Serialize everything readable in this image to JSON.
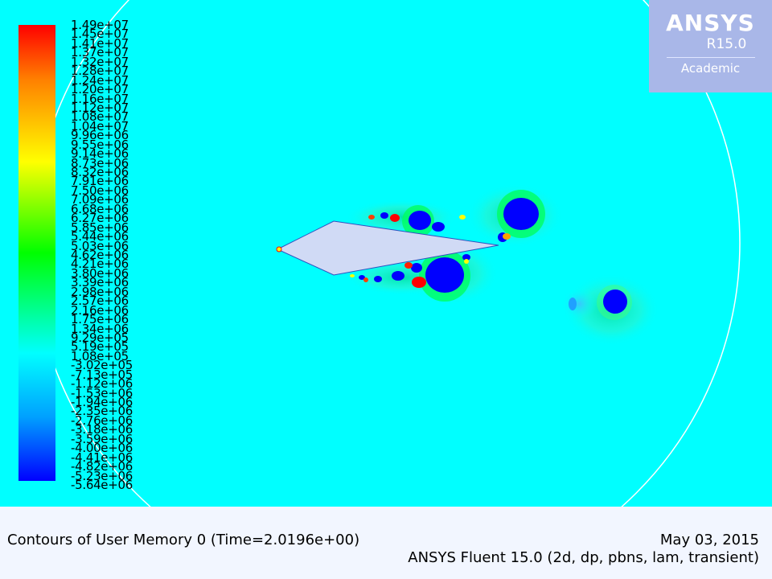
{
  "logo": {
    "brand": "ANSYS",
    "version": "R15.0",
    "edition": "Academic"
  },
  "colorbar": {
    "labels": [
      "1.49e+07",
      "1.45e+07",
      "1.41e+07",
      "1.37e+07",
      "1.32e+07",
      "1.28e+07",
      "1.24e+07",
      "1.20e+07",
      "1.16e+07",
      "1.12e+07",
      "1.08e+07",
      "1.04e+07",
      "9.96e+06",
      "9.55e+06",
      "9.14e+06",
      "8.73e+06",
      "8.32e+06",
      "7.91e+06",
      "7.50e+06",
      "7.09e+06",
      "6.68e+06",
      "6.27e+06",
      "5.85e+06",
      "5.44e+06",
      "5.03e+06",
      "4.62e+06",
      "4.21e+06",
      "3.80e+06",
      "3.39e+06",
      "2.98e+06",
      "2.57e+06",
      "2.16e+06",
      "1.75e+06",
      "1.34e+06",
      "9.29e+05",
      "5.19e+05",
      "1.08e+05",
      "-3.02e+05",
      "-7.13e+05",
      "-1.12e+06",
      "-1.53e+06",
      "-1.94e+06",
      "-2.35e+06",
      "-2.76e+06",
      "-3.18e+06",
      "-3.59e+06",
      "-4.00e+06",
      "-4.41e+06",
      "-4.82e+06",
      "-5.23e+06",
      "-5.64e+06"
    ]
  },
  "footer": {
    "title": "Contours of User Memory 0  (Time=2.0196e+00)",
    "date": "May 03, 2015",
    "solver": "ANSYS Fluent 15.0 (2d, dp, pbns, lam, transient)"
  },
  "colors": {
    "background_field": "#00ffff",
    "airfoil": "#d0daf5",
    "vortex_blue": "#0000ff",
    "vortex_red": "#ff0000"
  }
}
